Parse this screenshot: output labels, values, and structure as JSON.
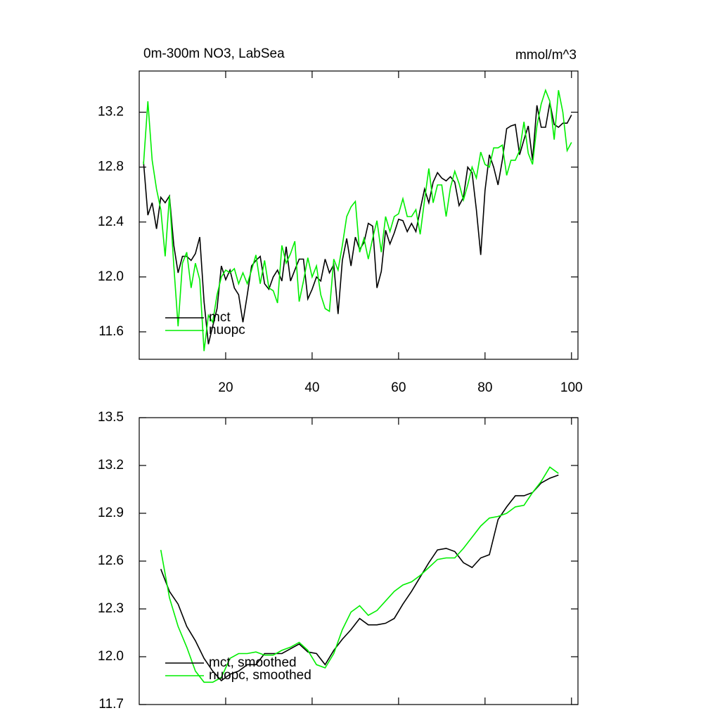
{
  "chart_data": [
    {
      "type": "line",
      "title": "0m-300m NO3, LabSea",
      "units": "mmol/m^3",
      "x": [
        1,
        2,
        3,
        4,
        5,
        6,
        7,
        8,
        9,
        10,
        11,
        12,
        13,
        14,
        15,
        16,
        17,
        18,
        19,
        20,
        21,
        22,
        23,
        24,
        25,
        26,
        27,
        28,
        29,
        30,
        31,
        32,
        33,
        34,
        35,
        36,
        37,
        38,
        39,
        40,
        41,
        42,
        43,
        44,
        45,
        46,
        47,
        48,
        49,
        50,
        51,
        52,
        53,
        54,
        55,
        56,
        57,
        58,
        59,
        60,
        61,
        62,
        63,
        64,
        65,
        66,
        67,
        68,
        69,
        70,
        71,
        72,
        73,
        74,
        75,
        76,
        77,
        78,
        79,
        80,
        81,
        82,
        83,
        84,
        85,
        86,
        87,
        88,
        89,
        90,
        91,
        92,
        93,
        94,
        95,
        96,
        97,
        98,
        99,
        100
      ],
      "series": [
        {
          "name": "mct",
          "color": "#000000",
          "values": [
            12.84,
            12.45,
            12.54,
            12.35,
            12.58,
            12.54,
            12.59,
            12.23,
            12.03,
            12.15,
            12.15,
            12.12,
            12.17,
            12.29,
            11.82,
            11.51,
            11.64,
            11.77,
            12.08,
            11.98,
            12.05,
            11.92,
            11.87,
            11.67,
            11.87,
            12.08,
            12.12,
            12.15,
            11.95,
            11.91,
            12.0,
            12.05,
            11.97,
            12.22,
            11.97,
            12.05,
            12.13,
            12.13,
            11.84,
            11.91,
            12.0,
            11.97,
            12.13,
            12.03,
            12.09,
            11.73,
            12.12,
            12.28,
            12.08,
            12.29,
            12.2,
            12.25,
            12.39,
            12.37,
            11.92,
            12.04,
            12.34,
            12.24,
            12.32,
            12.42,
            12.41,
            12.33,
            12.39,
            12.33,
            12.49,
            12.64,
            12.54,
            12.69,
            12.76,
            12.72,
            12.7,
            12.73,
            12.69,
            12.52,
            12.58,
            12.8,
            12.76,
            12.49,
            12.16,
            12.63,
            12.89,
            12.8,
            12.67,
            12.85,
            13.08,
            13.1,
            13.11,
            12.89,
            13.0,
            13.1,
            12.85,
            13.25,
            13.09,
            13.09,
            13.27,
            13.11,
            13.09,
            13.12,
            13.12,
            13.18
          ]
        },
        {
          "name": "nuopc",
          "color": "#00ee00",
          "values": [
            12.82,
            13.28,
            12.85,
            12.64,
            12.49,
            12.15,
            12.59,
            12.08,
            11.64,
            12.1,
            12.18,
            11.92,
            12.1,
            11.98,
            11.46,
            11.72,
            11.67,
            11.87,
            12.0,
            12.05,
            12.03,
            12.06,
            11.95,
            12.03,
            11.95,
            12.05,
            12.16,
            11.95,
            12.12,
            11.92,
            11.9,
            11.81,
            12.23,
            12.1,
            12.17,
            12.26,
            11.82,
            11.97,
            12.14,
            12.0,
            12.08,
            11.87,
            11.77,
            11.75,
            12.13,
            12.05,
            12.23,
            12.44,
            12.51,
            12.55,
            12.18,
            12.28,
            12.13,
            12.28,
            12.41,
            12.18,
            12.44,
            12.33,
            12.44,
            12.46,
            12.57,
            12.44,
            12.44,
            12.49,
            12.31,
            12.56,
            12.79,
            12.54,
            12.67,
            12.67,
            12.44,
            12.65,
            12.77,
            12.68,
            12.56,
            12.67,
            12.8,
            12.72,
            12.91,
            12.82,
            12.8,
            12.94,
            12.94,
            12.96,
            12.74,
            12.85,
            12.85,
            12.92,
            13.13,
            12.9,
            12.82,
            13.1,
            13.26,
            13.36,
            13.28,
            13.0,
            13.36,
            13.2,
            12.92,
            12.98
          ]
        }
      ],
      "xlim": [
        0,
        101.5
      ],
      "xticks": [
        20,
        40,
        60,
        80,
        100
      ],
      "ylim": [
        11.4,
        13.5
      ],
      "yticks": [
        11.6,
        {
          "value": 12,
          "label": "12.0"
        },
        12.4,
        12.8,
        13.2
      ],
      "legend": "lower left"
    },
    {
      "type": "line",
      "x": [
        5,
        7,
        9,
        11,
        13,
        15,
        17,
        19,
        21,
        23,
        25,
        27,
        29,
        31,
        33,
        35,
        37,
        39,
        41,
        43,
        45,
        47,
        49,
        51,
        53,
        55,
        57,
        59,
        61,
        63,
        65,
        67,
        69,
        71,
        73,
        75,
        77,
        79,
        81,
        83,
        85,
        87,
        89,
        91,
        93,
        95,
        97
      ],
      "series": [
        {
          "name": "mct, smoothed",
          "color": "#000000",
          "values": [
            12.55,
            12.41,
            12.33,
            12.19,
            12.1,
            11.99,
            11.91,
            11.85,
            11.89,
            11.91,
            11.95,
            11.95,
            12.02,
            12.02,
            12.02,
            12.05,
            12.08,
            12.03,
            12.02,
            11.95,
            12.04,
            12.11,
            12.17,
            12.24,
            12.2,
            12.2,
            12.21,
            12.24,
            12.33,
            12.41,
            12.5,
            12.59,
            12.67,
            12.68,
            12.66,
            12.59,
            12.56,
            12.62,
            12.64,
            12.86,
            12.94,
            13.01,
            13.01,
            13.03,
            13.09,
            13.12,
            13.14
          ]
        },
        {
          "name": "nuopc, smoothed",
          "color": "#00ee00",
          "values": [
            12.67,
            12.37,
            12.19,
            12.06,
            11.91,
            11.84,
            11.84,
            11.87,
            11.99,
            12.02,
            12.02,
            12.03,
            12.01,
            12.01,
            12.04,
            12.06,
            12.09,
            12.04,
            11.95,
            11.93,
            12.02,
            12.17,
            12.28,
            12.32,
            12.26,
            12.29,
            12.35,
            12.41,
            12.45,
            12.47,
            12.51,
            12.56,
            12.61,
            12.62,
            12.62,
            12.68,
            12.75,
            12.82,
            12.87,
            12.88,
            12.9,
            12.94,
            12.95,
            13.03,
            13.1,
            13.19,
            13.15
          ]
        }
      ],
      "xlim": [
        0,
        101.5
      ],
      "xticks": [
        20,
        40,
        60,
        80,
        100
      ],
      "ylim": [
        11.7,
        13.5
      ],
      "yticks": [
        11.7,
        {
          "value": 12,
          "label": "12.0"
        },
        12.3,
        12.6,
        12.9,
        13.2,
        13.5
      ],
      "legend": "lower left"
    }
  ]
}
